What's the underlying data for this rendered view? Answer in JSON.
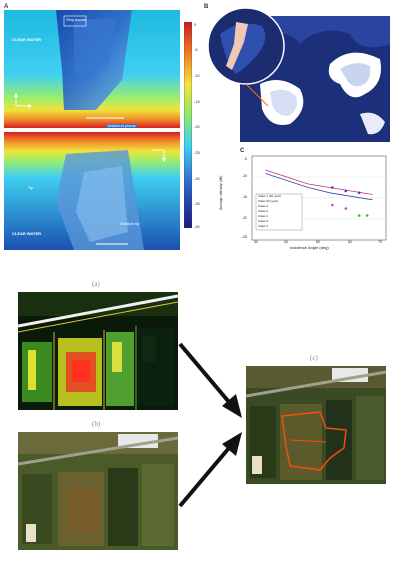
{
  "figure1": {
    "panel_a": {
      "label": "A",
      "top": {
        "left_text": "CLEAR WATER",
        "box_text": "Ship tracks"
      },
      "bottom": {
        "left_text": "CLEAR WATER",
        "tip_text": "Tip",
        "shallow_text": "Shallow tip"
      },
      "middle_note": "Sediment plume",
      "colorbar_ticks": [
        "0",
        "-5",
        "-10",
        "-15",
        "-20",
        "-25",
        "-30",
        "-35",
        "-40"
      ]
    },
    "panel_b": {
      "label": "B"
    },
    "panel_c": {
      "label": "C",
      "chart_data": {
        "type": "line",
        "ylabel": "Average intensity (dB)",
        "xlabel": "Incidence Angle (deg)",
        "legend": [
          "Class 1 (30 year)",
          "Class 60 (year)",
          "Class a",
          "Class b",
          "Class 4",
          "Class 5",
          "Class 2"
        ],
        "x_ticks": [
          "30",
          "40",
          "50",
          "60",
          "70"
        ],
        "y_ticks": [
          "-5",
          "-10",
          "-15",
          "-20",
          "-25"
        ],
        "series": [
          {
            "values": [
              -7,
              -9,
              -11,
              -12,
              -13,
              -14
            ]
          },
          {
            "values": [
              -8,
              -10,
              -12,
              -13.5,
              -14.5,
              -15.5
            ]
          }
        ],
        "points": [
          {
            "x": 55,
            "y": -12,
            "color": "#3a3ad0"
          },
          {
            "x": 60,
            "y": -13,
            "color": "#3a3ad0"
          },
          {
            "x": 65,
            "y": -13.5,
            "color": "#3a3ad0"
          },
          {
            "x": 55,
            "y": -17,
            "color": "#d040d0"
          },
          {
            "x": 60,
            "y": -18,
            "color": "#d040d0"
          },
          {
            "x": 65,
            "y": -20,
            "color": "#40b040"
          },
          {
            "x": 68,
            "y": -20,
            "color": "#40b040"
          }
        ]
      }
    }
  },
  "figure2": {
    "a_caption": "(a)",
    "b_caption": "(b)",
    "c_caption": "(c)"
  }
}
